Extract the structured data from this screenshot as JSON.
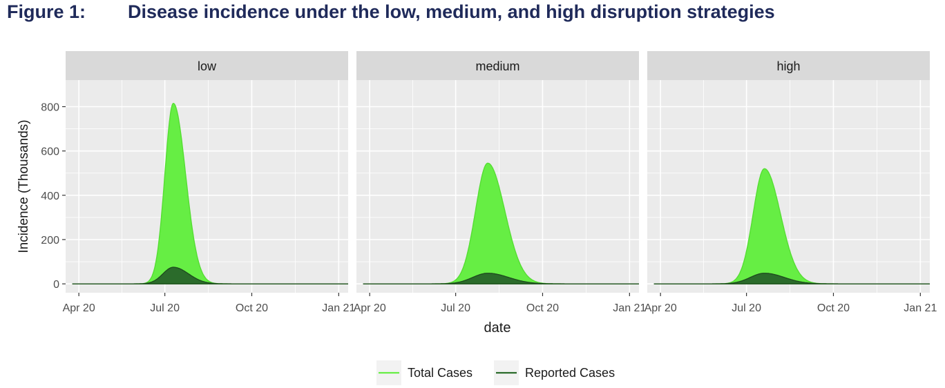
{
  "figure": {
    "label": "Figure 1:",
    "title": "Disease incidence under the low, medium, and high disruption strategies"
  },
  "chart_data": {
    "type": "area",
    "xlabel": "date",
    "ylabel": "Incidence (Thousands)",
    "x_ticks": [
      {
        "label": "Apr 20",
        "day": 0
      },
      {
        "label": "Jul 20",
        "day": 91
      },
      {
        "label": "Oct 20",
        "day": 183
      },
      {
        "label": "Jan 21",
        "day": 275
      }
    ],
    "x_range_days": [
      -14,
      285
    ],
    "ylim": [
      -40,
      920
    ],
    "y_ticks": [
      0,
      200,
      400,
      600,
      800
    ],
    "legend": {
      "position": "bottom",
      "entries": [
        {
          "name": "Total Cases",
          "color": "#66ee44"
        },
        {
          "name": "Reported Cases",
          "color": "#2b6b2b"
        }
      ]
    },
    "colors": {
      "total_fill": "#66ee44",
      "total_line": "#55dd33",
      "reported_fill": "#2b6b2b",
      "reported_line": "#1e4d1e",
      "panel_bg": "#ebebeb",
      "strip_bg": "#d9d9d9",
      "grid": "#ffffff"
    },
    "panels": [
      {
        "name": "low",
        "total": {
          "start_day": -7,
          "end_day": 285,
          "peak_day": 100,
          "peak": 815,
          "rise_width": 9,
          "fall_width": 13
        },
        "reported": {
          "start_day": -7,
          "end_day": 285,
          "peak_day": 100,
          "peak": 75,
          "rise_width": 11,
          "fall_width": 16
        }
      },
      {
        "name": "medium",
        "total": {
          "start_day": -7,
          "end_day": 285,
          "peak_day": 125,
          "peak": 545,
          "rise_width": 13,
          "fall_width": 18
        },
        "reported": {
          "start_day": -7,
          "end_day": 285,
          "peak_day": 125,
          "peak": 48,
          "rise_width": 16,
          "fall_width": 22
        }
      },
      {
        "name": "high",
        "total": {
          "start_day": -7,
          "end_day": 285,
          "peak_day": 110,
          "peak": 520,
          "rise_width": 12,
          "fall_width": 17
        },
        "reported": {
          "start_day": -7,
          "end_day": 285,
          "peak_day": 110,
          "peak": 48,
          "rise_width": 15,
          "fall_width": 21
        }
      }
    ]
  }
}
